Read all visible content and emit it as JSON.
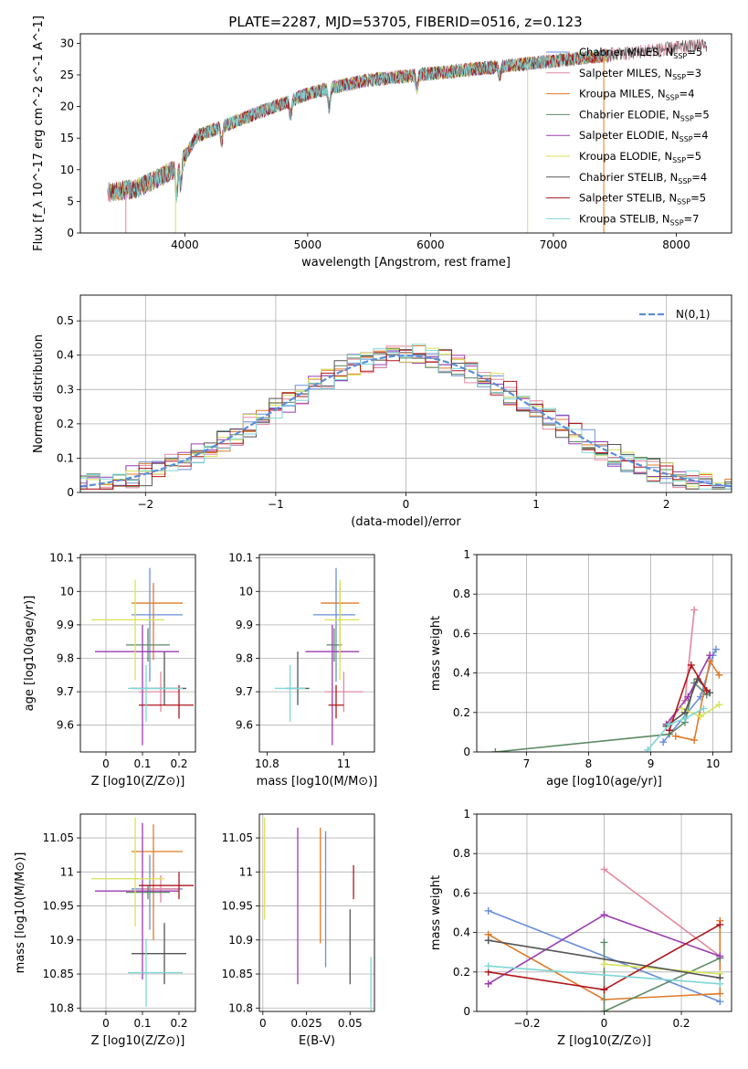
{
  "figure_title": "PLATE=2287, MJD=53705, FIBERID=0516, z=0.123",
  "models": [
    {
      "name": "Chabrier MILES",
      "nssp": "5",
      "color": "#6a8fd8"
    },
    {
      "name": "Salpeter MILES",
      "nssp": "3",
      "color": "#e3889f"
    },
    {
      "name": "Kroupa MILES",
      "nssp": "4",
      "color": "#e07a28"
    },
    {
      "name": "Chabrier ELODIE",
      "nssp": "5",
      "color": "#5e8a66"
    },
    {
      "name": "Salpeter ELODIE",
      "nssp": "4",
      "color": "#9b3cb0"
    },
    {
      "name": "Kroupa ELODIE",
      "nssp": "5",
      "color": "#d7e356"
    },
    {
      "name": "Chabrier STELIB",
      "nssp": "4",
      "color": "#555555"
    },
    {
      "name": "Salpeter STELIB",
      "nssp": "5",
      "color": "#b0171b"
    },
    {
      "name": "Kroupa STELIB",
      "nssp": "7",
      "color": "#7fd6d6"
    }
  ],
  "chart_data": [
    {
      "id": "spectrum",
      "type": "line",
      "xlabel": "wavelength [Angstrom, rest frame]",
      "ylabel": "Flux [f_λ 10^-17 erg cm^-2 s^-1 A^-1]",
      "xlim": [
        3150,
        8450
      ],
      "ylim": [
        0,
        31.5
      ],
      "xticks": [
        4000,
        5000,
        6000,
        7000,
        8000
      ],
      "yticks": [
        0,
        5,
        10,
        15,
        20,
        25,
        30
      ],
      "continuum": [
        [
          3400,
          6.5
        ],
        [
          3600,
          7.0
        ],
        [
          3800,
          8.8
        ],
        [
          3950,
          10.5
        ],
        [
          4100,
          15.3
        ],
        [
          4300,
          16.8
        ],
        [
          4500,
          18.3
        ],
        [
          4800,
          20.5
        ],
        [
          5000,
          22.0
        ],
        [
          5200,
          23.0
        ],
        [
          5500,
          24.2
        ],
        [
          6000,
          25.2
        ],
        [
          6500,
          26.2
        ],
        [
          7000,
          27.2
        ],
        [
          7400,
          28.0
        ],
        [
          8000,
          29.3
        ],
        [
          8400,
          30.0
        ]
      ],
      "dips": [
        [
          3933,
          4.5
        ],
        [
          3968,
          3.5
        ],
        [
          4300,
          2.5
        ],
        [
          4861,
          2.5
        ],
        [
          5175,
          3.0
        ],
        [
          5890,
          2.0
        ],
        [
          6563,
          1.5
        ]
      ],
      "spikes": [
        [
          3520,
          "Salpeter MILES"
        ],
        [
          3925,
          "Kroupa ELODIE"
        ],
        [
          6790,
          "Kroupa ELODIE"
        ],
        [
          7410,
          "Kroupa MILES"
        ]
      ]
    },
    {
      "id": "residuals",
      "type": "histogram",
      "xlabel": "(data-model)/error",
      "ylabel": "Normed distribution",
      "xlim": [
        -2.5,
        2.5
      ],
      "ylim": [
        0,
        0.575
      ],
      "xticks": [
        -2,
        -1,
        0,
        1,
        2
      ],
      "yticks": [
        0.0,
        0.1,
        0.2,
        0.3,
        0.4,
        0.5
      ],
      "legend": "N(0,1)",
      "legend_loc": "upper right",
      "grid": true,
      "bin_width": 0.1
    },
    {
      "id": "age_vs_Z",
      "type": "scatter",
      "xlabel": "Z [log10(Z/Z⊙)]",
      "ylabel": "age [log10(age/yr)]",
      "xlim": [
        -0.07,
        0.245
      ],
      "ylim": [
        9.52,
        10.11
      ],
      "xticks": [
        0.0,
        0.1,
        0.2
      ],
      "yticks": [
        9.6,
        9.7,
        9.8,
        9.9,
        10.0,
        10.1
      ],
      "points": [
        {
          "model": "Chabrier MILES",
          "x": 0.12,
          "xerr": [
            0.05,
            0.09
          ],
          "y": 9.93,
          "yerr": [
            0.2,
            0.14
          ]
        },
        {
          "model": "Salpeter MILES",
          "x": 0.15,
          "xerr": [
            0.06,
            0.05
          ],
          "y": 9.7,
          "yerr": [
            0.06,
            0.06
          ]
        },
        {
          "model": "Kroupa MILES",
          "x": 0.13,
          "xerr": [
            0.06,
            0.08
          ],
          "y": 9.965,
          "yerr": [
            0.17,
            0.06
          ]
        },
        {
          "model": "Chabrier ELODIE",
          "x": 0.115,
          "xerr": [
            0.06,
            0.06
          ],
          "y": 9.84,
          "yerr": [
            0.05,
            0.05
          ]
        },
        {
          "model": "Salpeter ELODIE",
          "x": 0.1,
          "xerr": [
            0.13,
            0.1
          ],
          "y": 9.82,
          "yerr": [
            0.28,
            0.08
          ]
        },
        {
          "model": "Kroupa ELODIE",
          "x": 0.08,
          "xerr": [
            0.12,
            0.08
          ],
          "y": 9.915,
          "yerr": [
            0.18,
            0.12
          ]
        },
        {
          "model": "Chabrier STELIB",
          "x": 0.16,
          "xerr": [
            0.09,
            0.06
          ],
          "y": 9.71,
          "yerr": [
            0.05,
            0.11
          ]
        },
        {
          "model": "Salpeter STELIB",
          "x": 0.2,
          "xerr": [
            0.11,
            0.04
          ],
          "y": 9.66,
          "yerr": [
            0.04,
            0.06
          ]
        },
        {
          "model": "Kroupa STELIB",
          "x": 0.11,
          "xerr": [
            0.05,
            0.1
          ],
          "y": 9.71,
          "yerr": [
            0.1,
            0.07
          ]
        }
      ]
    },
    {
      "id": "age_vs_mass",
      "type": "scatter",
      "xlabel": "mass [log10(M/M⊙)]",
      "ylabel": "",
      "xlim": [
        10.78,
        11.08
      ],
      "ylim": [
        9.52,
        10.11
      ],
      "xticks": [
        10.8,
        11.0
      ],
      "yticks": [
        9.6,
        9.7,
        9.8,
        9.9,
        10.0,
        10.1
      ],
      "points": [
        {
          "model": "Chabrier MILES",
          "x": 10.98,
          "xerr": [
            0.06,
            0.05
          ],
          "y": 9.93,
          "yerr": [
            0.2,
            0.14
          ]
        },
        {
          "model": "Salpeter MILES",
          "x": 11.0,
          "xerr": [
            0.05,
            0.05
          ],
          "y": 9.7,
          "yerr": [
            0.06,
            0.06
          ]
        },
        {
          "model": "Kroupa MILES",
          "x": 10.99,
          "xerr": [
            0.05,
            0.05
          ],
          "y": 9.965,
          "yerr": [
            0.17,
            0.06
          ]
        },
        {
          "model": "Chabrier ELODIE",
          "x": 10.975,
          "xerr": [
            0.02,
            0.02
          ],
          "y": 9.84,
          "yerr": [
            0.05,
            0.05
          ]
        },
        {
          "model": "Salpeter ELODIE",
          "x": 10.97,
          "xerr": [
            0.07,
            0.07
          ],
          "y": 9.82,
          "yerr": [
            0.28,
            0.08
          ]
        },
        {
          "model": "Kroupa ELODIE",
          "x": 10.99,
          "xerr": [
            0.04,
            0.05
          ],
          "y": 9.915,
          "yerr": [
            0.18,
            0.12
          ]
        },
        {
          "model": "Chabrier STELIB",
          "x": 10.88,
          "xerr": [
            0.03,
            0.03
          ],
          "y": 9.71,
          "yerr": [
            0.05,
            0.11
          ]
        },
        {
          "model": "Salpeter STELIB",
          "x": 10.98,
          "xerr": [
            0.02,
            0.02
          ],
          "y": 9.66,
          "yerr": [
            0.04,
            0.06
          ]
        },
        {
          "model": "Kroupa STELIB",
          "x": 10.86,
          "xerr": [
            0.04,
            0.04
          ],
          "y": 9.71,
          "yerr": [
            0.1,
            0.07
          ]
        }
      ]
    },
    {
      "id": "weight_vs_age",
      "type": "line",
      "xlabel": "age [log10(age/yr)]",
      "ylabel": "mass weight",
      "xlim": [
        6.2,
        10.3
      ],
      "ylim": [
        0,
        1
      ],
      "xticks": [
        7,
        8,
        9,
        10
      ],
      "yticks": [
        0.0,
        0.2,
        0.4,
        0.6,
        0.8,
        1.0
      ],
      "grid": true,
      "series": [
        {
          "model": "Chabrier MILES",
          "points": [
            [
              9.2,
              0.05
            ],
            [
              9.8,
              0.28
            ],
            [
              10.0,
              0.49
            ],
            [
              10.05,
              0.52
            ]
          ]
        },
        {
          "model": "Salpeter MILES",
          "points": [
            [
              9.3,
              0.15
            ],
            [
              9.55,
              0.26
            ],
            [
              9.7,
              0.72
            ]
          ]
        },
        {
          "model": "Kroupa MILES",
          "points": [
            [
              9.4,
              0.08
            ],
            [
              9.7,
              0.06
            ],
            [
              9.95,
              0.46
            ],
            [
              10.1,
              0.39
            ]
          ]
        },
        {
          "model": "Chabrier ELODIE",
          "points": [
            [
              6.5,
              0
            ],
            [
              9.3,
              0.09
            ],
            [
              9.55,
              0.15
            ],
            [
              9.7,
              0.35
            ],
            [
              9.9,
              0.29
            ]
          ]
        },
        {
          "model": "Salpeter ELODIE",
          "points": [
            [
              9.25,
              0.14
            ],
            [
              9.6,
              0.28
            ],
            [
              9.95,
              0.49
            ]
          ]
        },
        {
          "model": "Kroupa ELODIE",
          "points": [
            [
              9.5,
              0.22
            ],
            [
              9.8,
              0.18
            ],
            [
              10.1,
              0.24
            ]
          ]
        },
        {
          "model": "Chabrier STELIB",
          "points": [
            [
              9.25,
              0.13
            ],
            [
              9.55,
              0.2
            ],
            [
              9.75,
              0.37
            ],
            [
              9.95,
              0.3
            ]
          ]
        },
        {
          "model": "Salpeter STELIB",
          "points": [
            [
              9.3,
              0.11
            ],
            [
              9.65,
              0.44
            ],
            [
              9.9,
              0.31
            ]
          ]
        },
        {
          "model": "Kroupa STELIB",
          "points": [
            [
              8.95,
              0.01
            ],
            [
              9.3,
              0.14
            ],
            [
              9.55,
              0.17
            ],
            [
              9.85,
              0.22
            ]
          ]
        }
      ]
    },
    {
      "id": "mass_vs_Z",
      "type": "scatter",
      "xlabel": "Z [log10(Z/Z⊙)]",
      "ylabel": "mass [log10(M/M⊙)]",
      "xlim": [
        -0.07,
        0.245
      ],
      "ylim": [
        10.795,
        11.085
      ],
      "xticks": [
        0.0,
        0.1,
        0.2
      ],
      "yticks": [
        10.8,
        10.85,
        10.9,
        10.95,
        11.0,
        11.05
      ],
      "points": [
        {
          "model": "Chabrier MILES",
          "x": 0.12,
          "xerr": [
            0.05,
            0.09
          ],
          "y": 10.975,
          "yerr": [
            0.06,
            0.05
          ]
        },
        {
          "model": "Salpeter MILES",
          "x": 0.15,
          "xerr": [
            0.06,
            0.05
          ],
          "y": 10.975,
          "yerr": [
            0.02,
            0.02
          ]
        },
        {
          "model": "Kroupa MILES",
          "x": 0.13,
          "xerr": [
            0.06,
            0.08
          ],
          "y": 11.03,
          "yerr": [
            0.13,
            0.04
          ]
        },
        {
          "model": "Chabrier ELODIE",
          "x": 0.115,
          "xerr": [
            0.06,
            0.06
          ],
          "y": 10.97,
          "yerr": [
            0.01,
            0.01
          ]
        },
        {
          "model": "Salpeter ELODIE",
          "x": 0.1,
          "xerr": [
            0.13,
            0.1
          ],
          "y": 10.972,
          "yerr": [
            0.13,
            0.1
          ]
        },
        {
          "model": "Kroupa ELODIE",
          "x": 0.08,
          "xerr": [
            0.12,
            0.08
          ],
          "y": 10.99,
          "yerr": [
            0.07,
            0.09
          ]
        },
        {
          "model": "Chabrier STELIB",
          "x": 0.16,
          "xerr": [
            0.09,
            0.06
          ],
          "y": 10.88,
          "yerr": [
            0.045,
            0.045
          ]
        },
        {
          "model": "Salpeter STELIB",
          "x": 0.2,
          "xerr": [
            0.11,
            0.04
          ],
          "y": 10.98,
          "yerr": [
            0.02,
            0.02
          ]
        },
        {
          "model": "Kroupa STELIB",
          "x": 0.11,
          "xerr": [
            0.05,
            0.1
          ],
          "y": 10.852,
          "yerr": [
            0.05,
            0.05
          ]
        }
      ]
    },
    {
      "id": "mass_vs_ebv",
      "type": "errorbar",
      "xlabel": "E(B-V)",
      "ylabel": "",
      "xlim": [
        -0.002,
        0.064
      ],
      "ylim": [
        10.795,
        11.085
      ],
      "xticks": [
        0.0,
        0.025,
        0.05
      ],
      "yticks": [
        10.8,
        10.85,
        10.9,
        10.95,
        11.0,
        11.05
      ],
      "points": [
        {
          "model": "Kroupa ELODIE",
          "x": 0.001,
          "y": 11.01,
          "yerr": [
            0.08,
            0.07
          ]
        },
        {
          "model": "Salpeter ELODIE",
          "x": 0.02,
          "y": 10.95,
          "yerr": [
            0.115,
            0.115
          ]
        },
        {
          "model": "Kroupa MILES",
          "x": 0.033,
          "y": 10.98,
          "yerr": [
            0.085,
            0.085
          ]
        },
        {
          "model": "Chabrier MILES",
          "x": 0.036,
          "y": 10.96,
          "yerr": [
            0.1,
            0.1
          ]
        },
        {
          "model": "Chabrier STELIB",
          "x": 0.05,
          "y": 10.89,
          "yerr": [
            0.055,
            0.055
          ]
        },
        {
          "model": "Salpeter STELIB",
          "x": 0.052,
          "y": 10.985,
          "yerr": [
            0.025,
            0.025
          ]
        },
        {
          "model": "Kroupa STELIB",
          "x": 0.062,
          "y": 10.83,
          "yerr": [
            0.045,
            0.045
          ]
        }
      ]
    },
    {
      "id": "weight_vs_Z",
      "type": "line",
      "xlabel": "Z [log10(Z/Z⊙)]",
      "ylabel": "mass weight",
      "xlim": [
        -0.33,
        0.33
      ],
      "ylim": [
        0,
        1
      ],
      "xticks": [
        -0.2,
        0.0,
        0.2
      ],
      "yticks": [
        0.0,
        0.2,
        0.4,
        0.6,
        0.8,
        1.0
      ],
      "grid": true,
      "series": [
        {
          "model": "Chabrier MILES",
          "points": [
            [
              -0.3,
              0.51
            ],
            [
              0.3,
              0.05
            ]
          ]
        },
        {
          "model": "Salpeter MILES",
          "points": [
            [
              0.0,
              0.72
            ],
            [
              0.3,
              0.28
            ]
          ]
        },
        {
          "model": "Kroupa MILES",
          "points": [
            [
              -0.3,
              0.39
            ],
            [
              0.0,
              0.06
            ],
            [
              0.3,
              0.09
            ],
            [
              0.3,
              0.46
            ]
          ]
        },
        {
          "model": "Chabrier ELODIE",
          "points": [
            [
              0.0,
              0.35
            ],
            [
              0.0,
              0.0
            ],
            [
              0.3,
              0.27
            ]
          ]
        },
        {
          "model": "Salpeter ELODIE",
          "points": [
            [
              -0.3,
              0.14
            ],
            [
              0.0,
              0.49
            ],
            [
              0.3,
              0.28
            ]
          ]
        },
        {
          "model": "Kroupa ELODIE",
          "points": [
            [
              0.0,
              0.24
            ],
            [
              0.3,
              0.19
            ]
          ]
        },
        {
          "model": "Chabrier STELIB",
          "points": [
            [
              -0.3,
              0.36
            ],
            [
              0.3,
              0.17
            ]
          ]
        },
        {
          "model": "Salpeter STELIB",
          "points": [
            [
              -0.3,
              0.2
            ],
            [
              0.0,
              0.11
            ],
            [
              0.3,
              0.44
            ]
          ]
        },
        {
          "model": "Kroupa STELIB",
          "points": [
            [
              -0.3,
              0.23
            ],
            [
              0.3,
              0.14
            ]
          ]
        }
      ]
    }
  ]
}
